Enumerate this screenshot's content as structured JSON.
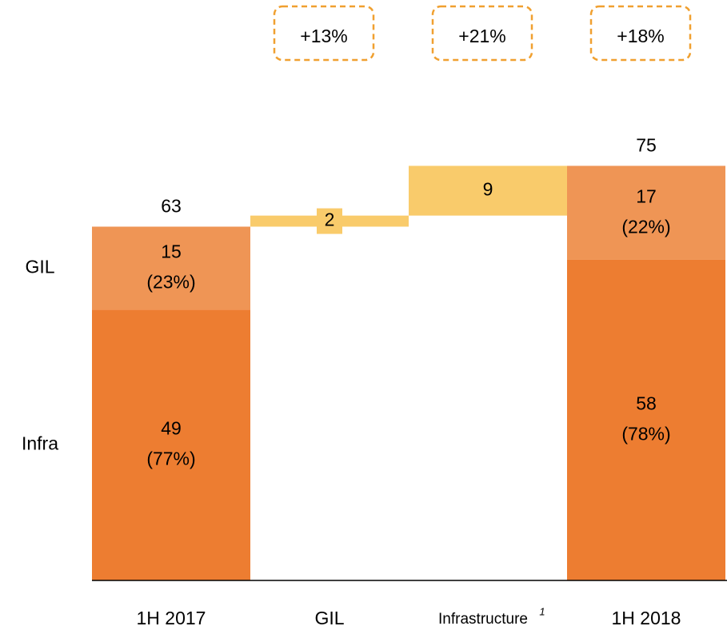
{
  "chart_data": {
    "type": "waterfall",
    "categories": [
      "1H 2017",
      "GIL",
      "Infrastructure",
      "1H 2018"
    ],
    "footnote_marker": "1",
    "ylim": [
      0,
      105
    ],
    "series": [
      {
        "name": "Infra",
        "color": "#ed7d31",
        "values": [
          49,
          null,
          null,
          58
        ],
        "shares": [
          77,
          null,
          null,
          78
        ],
        "share_labels": [
          "(77%)",
          null,
          null,
          "(78%)"
        ]
      },
      {
        "name": "GIL",
        "color": "#ef9555",
        "values": [
          15,
          null,
          null,
          17
        ],
        "shares": [
          23,
          null,
          null,
          22
        ],
        "share_labels": [
          "(23%)",
          null,
          null,
          "(22%)"
        ]
      }
    ],
    "steps": {
      "color": "#f9cb6b",
      "values": [
        null,
        2,
        9,
        null
      ]
    },
    "totals": [
      63,
      null,
      null,
      75
    ],
    "growth": {
      "color": "#f0a030",
      "values": [
        null,
        13,
        21,
        18
      ],
      "value_labels": [
        null,
        "+13%",
        "+21%",
        "+18%"
      ]
    }
  }
}
